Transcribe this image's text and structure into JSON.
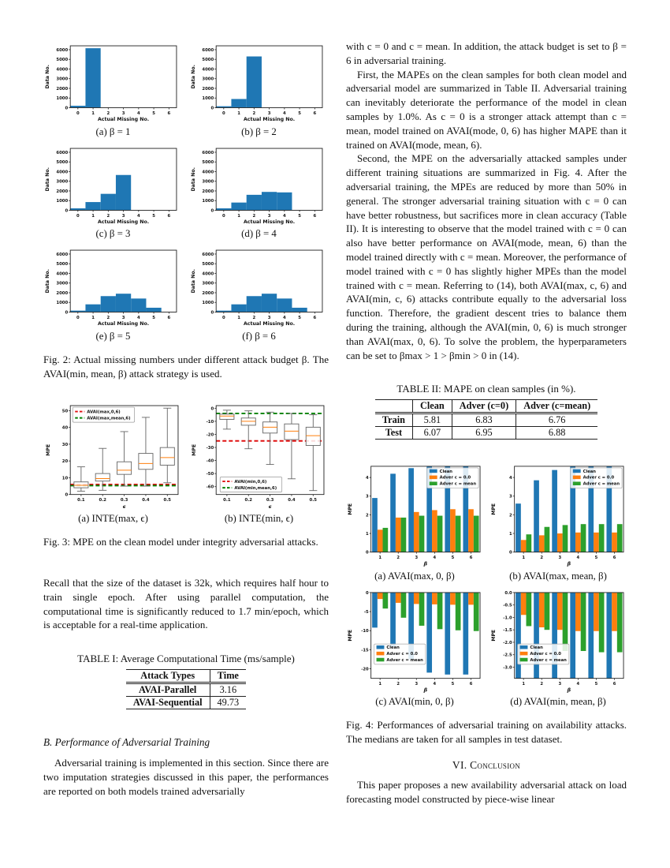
{
  "page": {
    "left": {
      "fig2_caption": "Fig. 2: Actual missing numbers under different attack budget β. The AVAI(min, mean, β) attack strategy is used.",
      "fig3_caption": "Fig. 3: MPE on the clean model under integrity adversarial attacks.",
      "para_recall": "Recall that the size of the dataset is 32k, which requires half hour to train single epoch. After using parallel computation, the computational time is significantly reduced to 1.7 min/epoch, which is acceptable for a real-time application.",
      "table1": {
        "caption": "TABLE I: Average Computational Time (ms/sample)",
        "headers": [
          "Attack Types",
          "Time"
        ],
        "rows": [
          [
            "AVAI-Parallel",
            "3.16"
          ],
          [
            "AVAI-Sequential",
            "49.73"
          ]
        ]
      },
      "sectionB_heading": "B. Performance of Adversarial Training",
      "para_adv": "Adversarial training is implemented in this section. Since there are two imputation strategies discussed in this paper, the performances are reported on both models trained adversarially"
    },
    "right": {
      "para1": "with c = 0 and c = mean. In addition, the attack budget is set to β = 6 in adversarial training.",
      "para2": "First, the MAPEs on the clean samples for both clean model and adversarial model are summarized in Table II. Adversarial training can inevitably deteriorate the performance of the model in clean samples by 1.0%. As c = 0 is a stronger attack attempt than c = mean, model trained on AVAI(mode, 0, 6) has higher MAPE than it trained on AVAI(mode, mean, 6).",
      "para3": "Second, the MPE on the adversarially attacked samples under different training situations are summarized in Fig. 4. After the adversarial training, the MPEs are reduced by more than 50% in general. The stronger adversarial training situation with c = 0 can have better robustness, but sacrifices more in clean accuracy (Table II). It is interesting to observe that the model trained with c = 0 can also have better performance on AVAI(mode, mean, 6) than the model trained directly with c = mean. Moreover, the performance of model trained with c = 0 has slightly higher MPEs than the model trained with c = mean. Referring to (14), both AVAI(max, c, 6) and AVAI(min, c, 6) attacks contribute equally to the adversarial loss function. Therefore, the gradient descent tries to balance them during the training, although the AVAI(min, 0, 6) is much stronger than AVAI(max, 0, 6). To solve the problem, the hyperparameters can be set to βmax > 1 > βmin > 0 in (14).",
      "table2": {
        "caption": "TABLE II: MAPE on clean samples (in %).",
        "headers": [
          "",
          "Clean",
          "Adver (c=0)",
          "Adver (c=mean)"
        ],
        "rows": [
          [
            "Train",
            "5.81",
            "6.83",
            "6.76"
          ],
          [
            "Test",
            "6.07",
            "6.95",
            "6.88"
          ]
        ]
      },
      "fig4_caption": "Fig. 4: Performances of adversarial training on availability attacks. The medians are taken for all samples in test dataset.",
      "conclusion_heading": "VI. Conclusion",
      "para_conclusion": "This paper proposes a new availability adversarial attack on load forecasting model constructed by piece-wise linear"
    }
  },
  "chart_data": {
    "fig2": {
      "type": "bar",
      "xlabel": "Actual Missing No.",
      "ylabel": "Data No.",
      "xticks": [
        0,
        1,
        2,
        3,
        4,
        5,
        6
      ],
      "yticks": [
        0,
        1000,
        2000,
        3000,
        4000,
        5000,
        6000
      ],
      "ylim": [
        0,
        6400
      ],
      "bar_color": "#1f77b4",
      "subplots": [
        {
          "label": "(a) β = 1",
          "values": [
            200,
            6150,
            0,
            0,
            0,
            0,
            0
          ]
        },
        {
          "label": "(b) β = 2",
          "values": [
            150,
            900,
            5300,
            0,
            0,
            0,
            0
          ]
        },
        {
          "label": "(c) β = 3",
          "values": [
            200,
            850,
            1700,
            3650,
            0,
            0,
            0
          ]
        },
        {
          "label": "(d) β = 4",
          "values": [
            200,
            800,
            1600,
            1900,
            1850,
            0,
            0
          ]
        },
        {
          "label": "(e) β = 5",
          "values": [
            150,
            800,
            1650,
            1900,
            1400,
            450,
            0
          ]
        },
        {
          "label": "(f) β = 6",
          "values": [
            150,
            800,
            1650,
            1900,
            1400,
            450,
            0
          ]
        }
      ]
    },
    "fig3": {
      "type": "boxplot",
      "xlabel": "ϵ",
      "ylabel": "MPE",
      "xticklabels": [
        "0.1",
        "0.2",
        "0.3",
        "0.4",
        "0.5"
      ],
      "subplots": [
        {
          "label": "(a) INTE(max, ϵ)",
          "ylim": [
            0,
            53
          ],
          "yticks": [
            0,
            10,
            20,
            30,
            40,
            50
          ],
          "legend_pos": "top-left",
          "boxes": [
            {
              "whislo": 2,
              "q1": 4,
              "med": 5.5,
              "q3": 7.5,
              "whishi": 16.5
            },
            {
              "whislo": 2.5,
              "q1": 8,
              "med": 9.5,
              "q3": 12.5,
              "whishi": 27.5
            },
            {
              "whislo": 5,
              "q1": 12,
              "med": 14.5,
              "q3": 19.5,
              "whishi": 37.5
            },
            {
              "whislo": 5,
              "q1": 15,
              "med": 18.5,
              "q3": 24.5,
              "whishi": 46
            },
            {
              "whislo": 7,
              "q1": 17.5,
              "med": 22,
              "q3": 28,
              "whishi": 51.5
            }
          ],
          "hlines": [
            {
              "label": "AVAI(max,0,6)",
              "y": 6,
              "color": "#e01010"
            },
            {
              "label": "AVAI(max,mean,6)",
              "y": 5.3,
              "color": "#008000"
            }
          ]
        },
        {
          "label": "(b) INTE(min, ϵ)",
          "ylim": [
            -66,
            2
          ],
          "yticks": [
            0,
            -10,
            -20,
            -30,
            -40,
            -50,
            -60
          ],
          "legend_pos": "bottom-left",
          "boxes": [
            {
              "whislo": -16,
              "q1": -8.5,
              "med": -6,
              "q3": -4.5,
              "whishi": -1.5
            },
            {
              "whislo": -31,
              "q1": -13,
              "med": -10,
              "q3": -7.5,
              "whishi": -2
            },
            {
              "whislo": -43,
              "q1": -19,
              "med": -14.5,
              "q3": -10.5,
              "whishi": -3
            },
            {
              "whislo": -54,
              "q1": -24,
              "med": -17.5,
              "q3": -12,
              "whishi": -4
            },
            {
              "whislo": -63,
              "q1": -28.5,
              "med": -21,
              "q3": -14.5,
              "whishi": -5
            }
          ],
          "hlines": [
            {
              "label": "AVAI(min,0,6)",
              "y": -25,
              "color": "#e01010"
            },
            {
              "label": "AVAI(min,mean,6)",
              "y": -4,
              "color": "#008000"
            }
          ]
        }
      ]
    },
    "fig4": {
      "type": "grouped-bar",
      "xlabel": "β",
      "ylabel": "MPE",
      "categories": [
        1,
        2,
        3,
        4,
        5,
        6
      ],
      "series_labels": [
        "Clean",
        "Adver c = 0.0",
        "Adver c = mean"
      ],
      "colors": [
        "#1f77b4",
        "#ff7f0e",
        "#2ca02c"
      ],
      "subplots": [
        {
          "label": "(a) AVAI(max, 0, β)",
          "ylim": [
            0,
            4.6
          ],
          "yticks": [
            0,
            1,
            2,
            3,
            4
          ],
          "legend_pos": "top-right",
          "series": [
            {
              "name": "Clean",
              "values": [
                2.9,
                4.2,
                4.5,
                4.6,
                4.6,
                4.6
              ]
            },
            {
              "name": "Adver c = 0.0",
              "values": [
                1.2,
                1.85,
                2.15,
                2.25,
                2.3,
                2.3
              ]
            },
            {
              "name": "Adver c = mean",
              "values": [
                1.3,
                1.85,
                1.95,
                1.95,
                1.95,
                1.95
              ]
            }
          ]
        },
        {
          "label": "(b) AVAI(max, mean, β)",
          "ylim": [
            0,
            4.6
          ],
          "yticks": [
            0,
            1,
            2,
            3,
            4
          ],
          "legend_pos": "top-right",
          "series": [
            {
              "name": "Clean",
              "values": [
                2.6,
                3.85,
                4.4,
                4.6,
                4.6,
                4.6
              ]
            },
            {
              "name": "Adver c = 0.0",
              "values": [
                0.65,
                0.9,
                1.0,
                1.05,
                1.05,
                1.05
              ]
            },
            {
              "name": "Adver c = mean",
              "values": [
                0.95,
                1.35,
                1.45,
                1.5,
                1.5,
                1.5
              ]
            }
          ]
        },
        {
          "label": "(c) AVAI(min, 0, β)",
          "ylim": [
            -22.5,
            0
          ],
          "yticks": [
            0,
            -5,
            -10,
            -15,
            -20
          ],
          "legend_pos": "bottom-left",
          "series": [
            {
              "name": "Clean",
              "values": [
                -9.2,
                -14.3,
                -17.5,
                -21,
                -21.5,
                -21.5
              ]
            },
            {
              "name": "Adver c = 0.0",
              "values": [
                -1.7,
                -2.7,
                -3.0,
                -3.1,
                -3.2,
                -3.2
              ]
            },
            {
              "name": "Adver c = mean",
              "values": [
                -4.2,
                -6.6,
                -8.7,
                -9.6,
                -9.9,
                -10.1
              ]
            }
          ]
        },
        {
          "label": "(d) AVAI(min, mean, β)",
          "ylim": [
            -3.45,
            0
          ],
          "yticks": [
            0,
            -0.5,
            -1,
            -1.5,
            -2,
            -2.5,
            -3
          ],
          "ytick_labels": [
            "0.0",
            "-0.5",
            "-1.0",
            "-1.5",
            "-2.0",
            "-2.5",
            "-3.0"
          ],
          "legend_pos": "bottom-left",
          "series": [
            {
              "name": "Clean",
              "values": [
                -3.45,
                -3.45,
                -3.45,
                -3.45,
                -3.45,
                -3.45
              ]
            },
            {
              "name": "Adver c = 0.0",
              "values": [
                -0.9,
                -1.4,
                -1.5,
                -1.55,
                -1.55,
                -1.55
              ]
            },
            {
              "name": "Adver c = mean",
              "values": [
                -1.35,
                -1.5,
                -2.35,
                -2.35,
                -2.4,
                -2.4
              ]
            }
          ]
        }
      ]
    }
  }
}
